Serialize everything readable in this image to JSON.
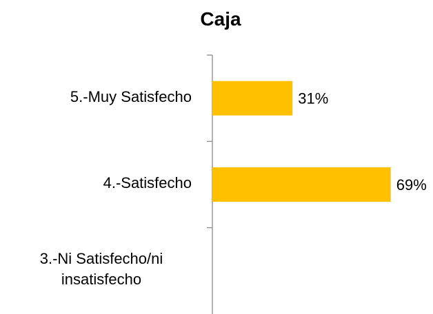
{
  "chart_data": {
    "type": "bar",
    "orientation": "horizontal",
    "title": "Caja",
    "categories": [
      "5.-Muy Satisfecho",
      "4.-Satisfecho",
      "3.-Ni Satisfecho/ni insatisfecho"
    ],
    "values": [
      31,
      69,
      null
    ],
    "value_labels": [
      "31%",
      "69%",
      null
    ],
    "color": "#FFC000",
    "xlim": [
      0,
      80
    ]
  }
}
